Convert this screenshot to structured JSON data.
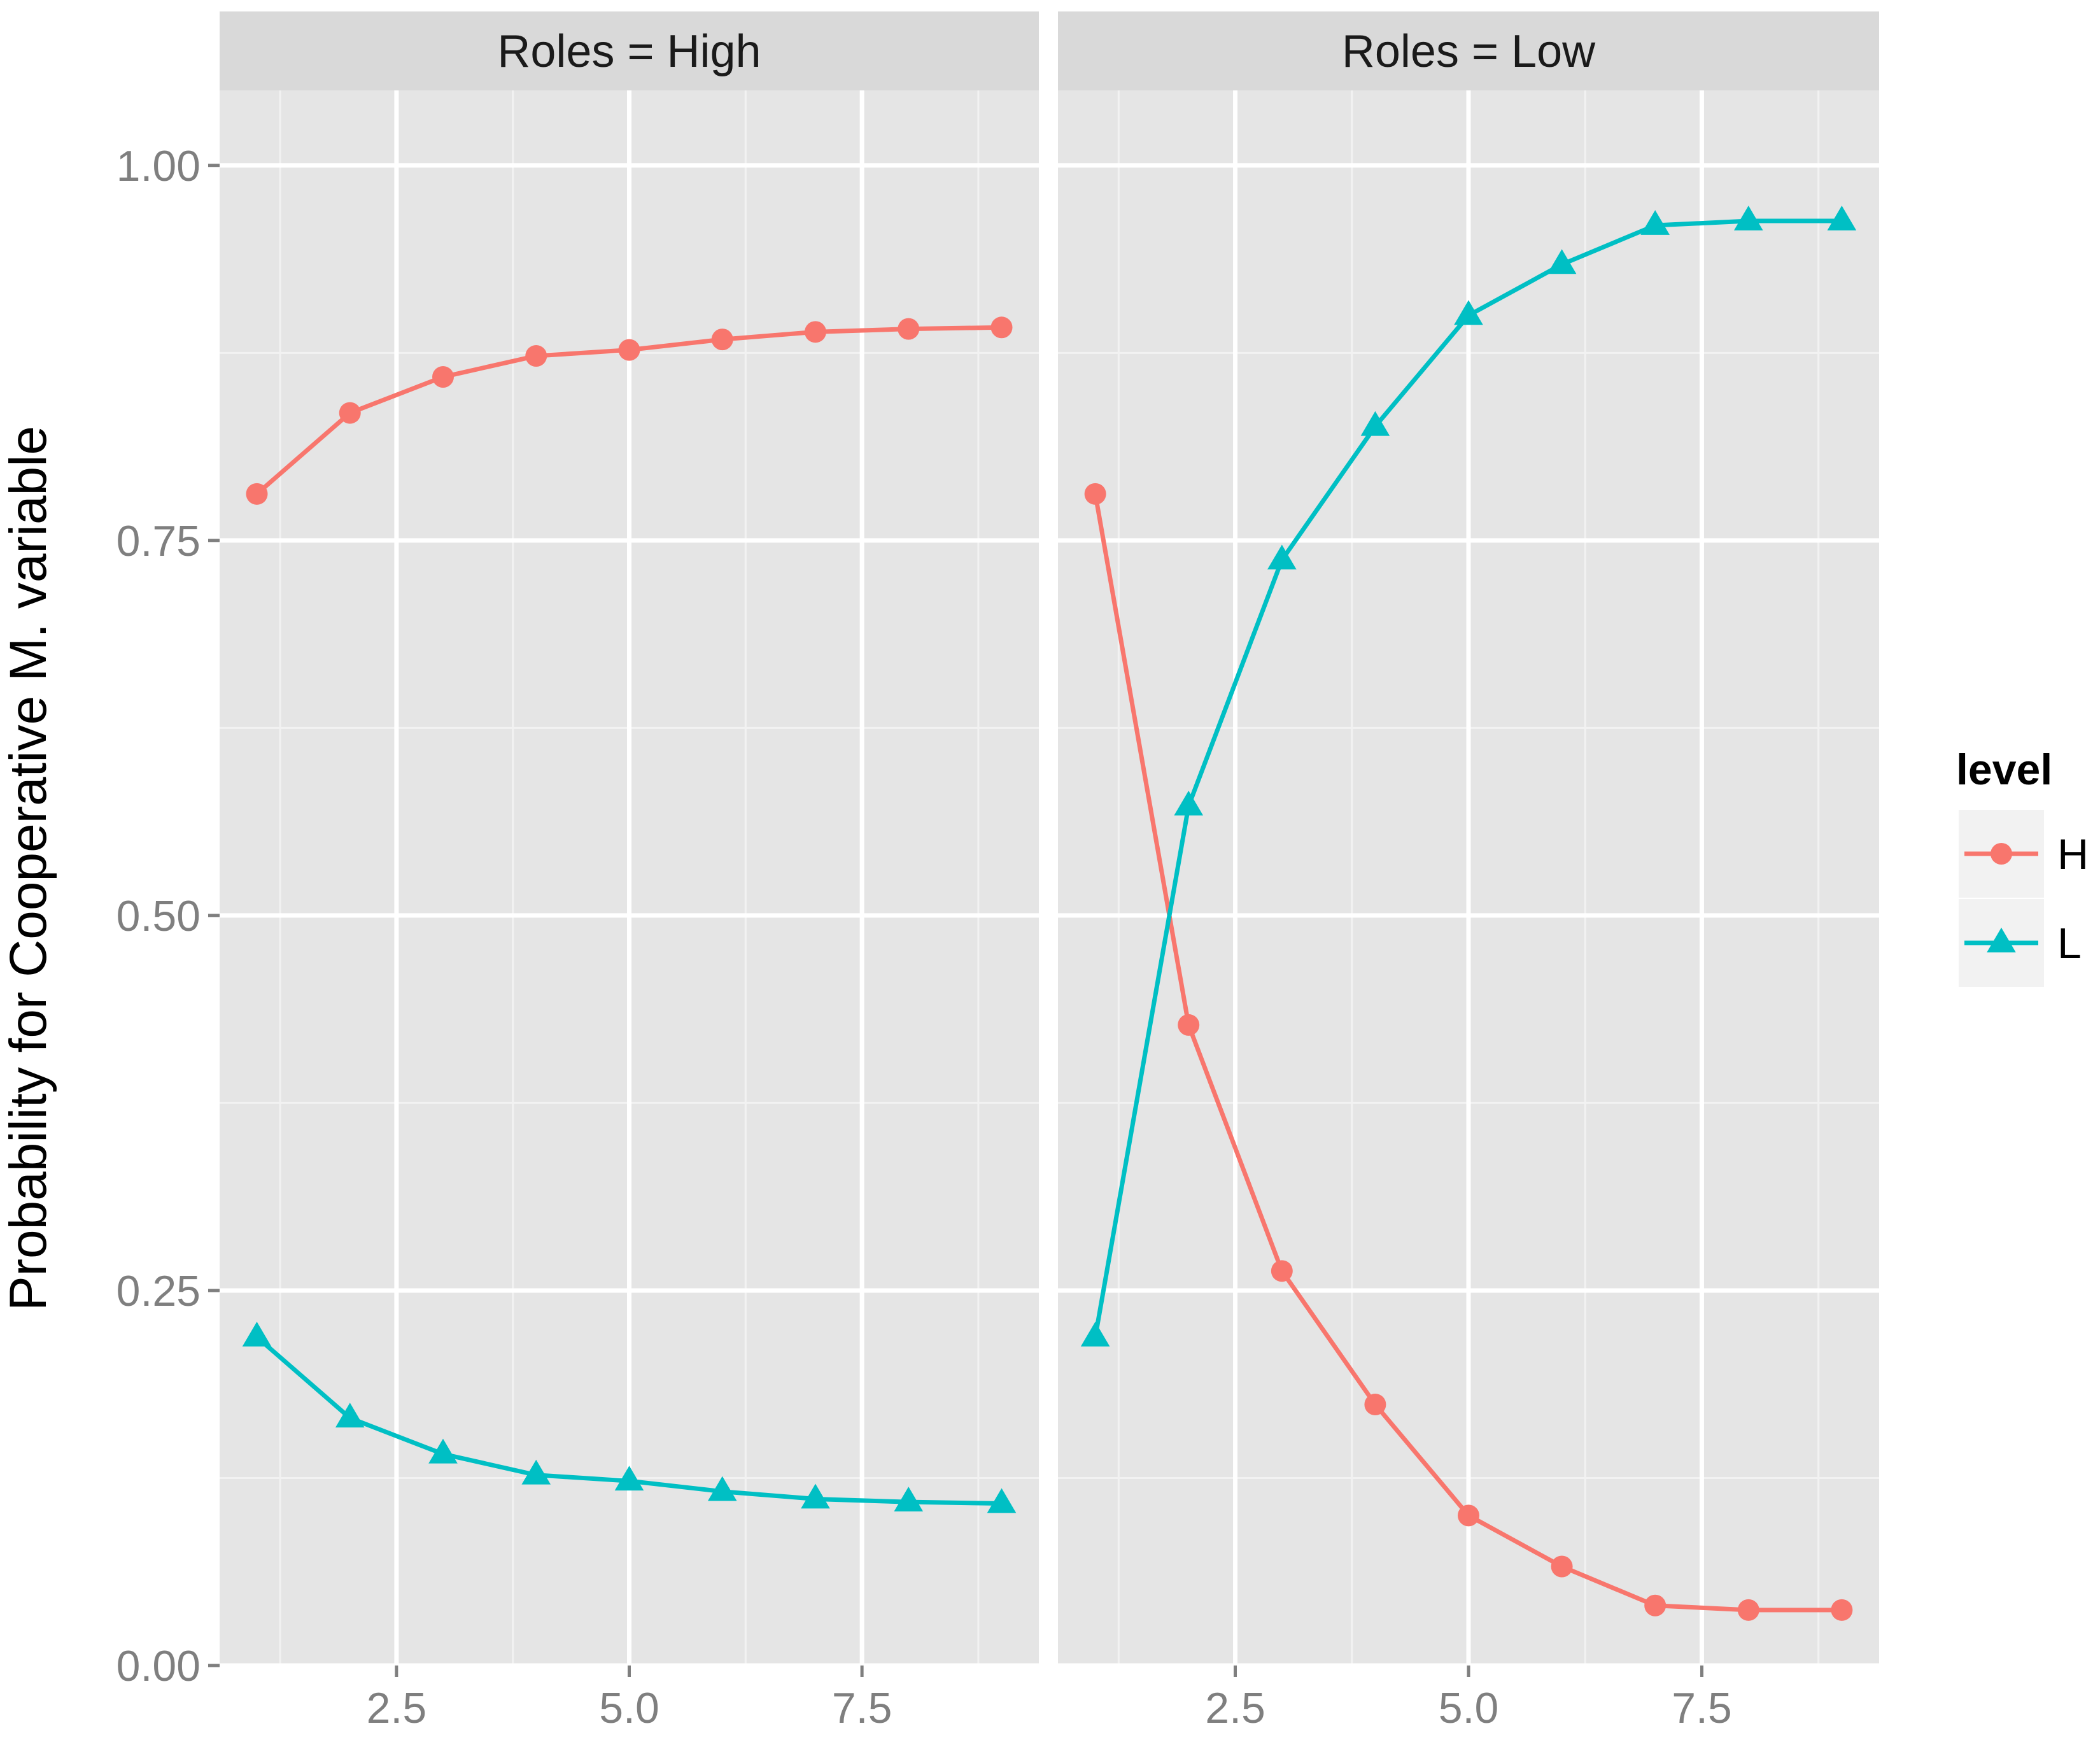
{
  "chart_data": {
    "type": "line",
    "ylabel": "Probability for Cooperative M. variable",
    "xlabel": "",
    "ylim": [
      0,
      1.05
    ],
    "xlim": [
      0.6,
      9.4
    ],
    "y_ticks": [
      {
        "value": 0,
        "label": "0.00"
      },
      {
        "value": 0.25,
        "label": "0.25"
      },
      {
        "value": 0.5,
        "label": "0.50"
      },
      {
        "value": 0.75,
        "label": "0.75"
      },
      {
        "value": 1.0,
        "label": "1.00"
      }
    ],
    "x_ticks": [
      {
        "value": 2.5,
        "label": "2.5"
      },
      {
        "value": 5.0,
        "label": "5.0"
      },
      {
        "value": 7.5,
        "label": "7.5"
      }
    ],
    "grid": true,
    "legend": {
      "title": "level",
      "position": "right",
      "entries": [
        {
          "name": "H",
          "color": "#F8766D",
          "shape": "circle"
        },
        {
          "name": "L",
          "color": "#00BFC4",
          "shape": "triangle"
        }
      ]
    },
    "panels": [
      {
        "strip": "Roles = High",
        "series": [
          {
            "name": "H",
            "x": [
              1,
              2,
              3,
              4,
              5,
              6,
              7,
              8,
              9
            ],
            "y": [
              0.781,
              0.835,
              0.859,
              0.873,
              0.877,
              0.884,
              0.889,
              0.891,
              0.892
            ]
          },
          {
            "name": "L",
            "x": [
              1,
              2,
              3,
              4,
              5,
              6,
              7,
              8,
              9
            ],
            "y": [
              0.219,
              0.165,
              0.141,
              0.127,
              0.123,
              0.116,
              0.111,
              0.109,
              0.108
            ]
          }
        ]
      },
      {
        "strip": "Roles = Low",
        "series": [
          {
            "name": "H",
            "x": [
              1,
              2,
              3,
              4,
              5,
              6,
              7,
              8,
              9
            ],
            "y": [
              0.781,
              0.427,
              0.263,
              0.174,
              0.1,
              0.066,
              0.04,
              0.037,
              0.037
            ]
          },
          {
            "name": "L",
            "x": [
              1,
              2,
              3,
              4,
              5,
              6,
              7,
              8,
              9
            ],
            "y": [
              0.219,
              0.573,
              0.737,
              0.826,
              0.9,
              0.934,
              0.96,
              0.963,
              0.963
            ]
          }
        ]
      }
    ]
  }
}
